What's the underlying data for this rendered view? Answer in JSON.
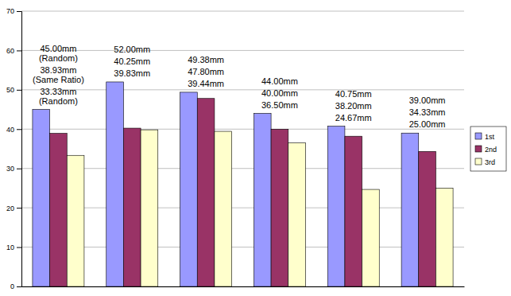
{
  "chart_data": {
    "type": "bar",
    "categories": [
      null,
      null,
      null,
      null,
      null,
      null
    ],
    "series": [
      {
        "name": "1st",
        "color": "#9999ff",
        "values": [
          45.0,
          52.0,
          49.38,
          44.0,
          40.75,
          39.0
        ],
        "value_labels": [
          "45.00mm\n(Random)",
          "52.00mm",
          "49.38mm",
          "44.00mm",
          "40.75mm",
          "39.00mm"
        ]
      },
      {
        "name": "2nd",
        "color": "#993366",
        "values": [
          38.93,
          40.25,
          47.8,
          40.0,
          38.2,
          34.33
        ],
        "value_labels": [
          "38.93mm\n(Same Ratio)",
          "40.25mm",
          "47.80mm",
          "40.00mm",
          "38.20mm",
          "34.33mm"
        ]
      },
      {
        "name": "3rd",
        "color": "#ffffcc",
        "values": [
          33.33,
          39.83,
          39.44,
          36.5,
          24.67,
          25.0
        ],
        "value_labels": [
          "33.33mm\n(Random)",
          "39.83mm",
          "39.44mm",
          "36.50mm",
          "24.67mm",
          "25.00mm"
        ]
      }
    ],
    "ylim": [
      0,
      70
    ],
    "yticks": [
      0,
      10,
      20,
      30,
      40,
      50,
      60,
      70
    ],
    "grid": true,
    "legend": "right",
    "data_labels": true
  }
}
